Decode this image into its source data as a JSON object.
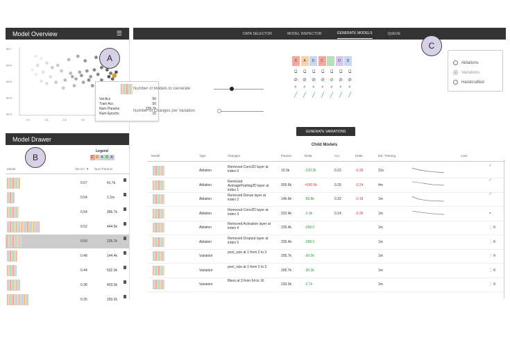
{
  "overview": {
    "title": "Model Overview",
    "menu_icon": "hamburger-icon"
  },
  "drawer": {
    "title": "Model Drawer",
    "col_model": "Model",
    "col_valacc": "Val Acc ▼",
    "col_params": "Num Params"
  },
  "legend": {
    "title": "Legend",
    "letters": [
      "C",
      "D",
      "A",
      "D",
      "A"
    ]
  },
  "callouts": {
    "a": "A",
    "b": "B",
    "c": "C"
  },
  "scatter": {
    "y_ticks": [
      "5e+7",
      "5e+6",
      "5e+5",
      "5e+4",
      "5e+3"
    ],
    "x_ticks": [
      "0.1",
      "0.2",
      "0.3",
      "0.4",
      "0.5",
      "0.6"
    ],
    "points": [
      {
        "x": 0.14,
        "y": 2.6,
        "c": "#eee"
      },
      {
        "x": 0.17,
        "y": 2.5,
        "c": "#eee"
      },
      {
        "x": 0.15,
        "y": 2.2,
        "c": "#ddd"
      },
      {
        "x": 0.2,
        "y": 2.3,
        "c": "#ddd"
      },
      {
        "x": 0.23,
        "y": 2.1,
        "c": "#ccc"
      },
      {
        "x": 0.18,
        "y": 1.9,
        "c": "#e5e5e5"
      },
      {
        "x": 0.22,
        "y": 1.7,
        "c": "#ddd"
      },
      {
        "x": 0.14,
        "y": 1.8,
        "c": "#eee"
      },
      {
        "x": 0.28,
        "y": 1.95,
        "c": "#ccc"
      },
      {
        "x": 0.33,
        "y": 1.85,
        "c": "#bbb"
      },
      {
        "x": 0.38,
        "y": 1.9,
        "c": "#aaa"
      },
      {
        "x": 0.42,
        "y": 1.95,
        "c": "#999"
      },
      {
        "x": 0.46,
        "y": 2.0,
        "c": "#888"
      },
      {
        "x": 0.5,
        "y": 2.1,
        "c": "#777"
      },
      {
        "x": 0.53,
        "y": 2.0,
        "c": "#666"
      },
      {
        "x": 0.55,
        "y": 1.85,
        "c": "#777"
      },
      {
        "x": 0.48,
        "y": 1.8,
        "c": "#888"
      },
      {
        "x": 0.44,
        "y": 1.7,
        "c": "#999"
      },
      {
        "x": 0.36,
        "y": 1.6,
        "c": "#aaa"
      },
      {
        "x": 0.3,
        "y": 1.55,
        "c": "#bbb"
      },
      {
        "x": 0.25,
        "y": 1.45,
        "c": "#ccc"
      },
      {
        "x": 0.2,
        "y": 1.4,
        "c": "#ddd"
      },
      {
        "x": 0.17,
        "y": 1.5,
        "c": "#e5e5e5"
      },
      {
        "x": 0.4,
        "y": 1.45,
        "c": "#aaa"
      },
      {
        "x": 0.45,
        "y": 1.3,
        "c": "#999"
      },
      {
        "x": 0.35,
        "y": 1.3,
        "c": "#bbb"
      },
      {
        "x": 0.29,
        "y": 1.2,
        "c": "#ccc"
      },
      {
        "x": 0.5,
        "y": 1.55,
        "c": "#888"
      },
      {
        "x": 0.56,
        "y": 1.6,
        "c": "#666"
      },
      {
        "x": 0.54,
        "y": 1.7,
        "c": "#555"
      },
      {
        "x": 0.58,
        "y": 1.9,
        "c": "#555"
      },
      {
        "x": 0.57,
        "y": 1.75,
        "c": "#d4a017"
      },
      {
        "x": 0.52,
        "y": 2.3,
        "c": "#777"
      },
      {
        "x": 0.47,
        "y": 2.55,
        "c": "#888"
      },
      {
        "x": 0.41,
        "y": 2.4,
        "c": "#999"
      },
      {
        "x": 0.37,
        "y": 2.6,
        "c": "#aaa"
      },
      {
        "x": 0.32,
        "y": 2.45,
        "c": "#bbb"
      },
      {
        "x": 0.26,
        "y": 2.2,
        "c": "#ccc"
      },
      {
        "x": 0.12,
        "y": 2.0,
        "c": "#eee"
      },
      {
        "x": 0.39,
        "y": 1.75,
        "c": "#999"
      },
      {
        "x": 0.43,
        "y": 1.55,
        "c": "#888"
      },
      {
        "x": 0.34,
        "y": 1.7,
        "c": "#aaa"
      }
    ]
  },
  "tooltip": {
    "rows": [
      {
        "label": "Val Acc",
        "value": "50"
      },
      {
        "label": "Train Acc",
        "value": "50"
      },
      {
        "label": "Num Params",
        "value": "235.7k"
      },
      {
        "label": "Num Epochs",
        "value": "15"
      }
    ]
  },
  "drawer_rows": [
    {
      "val_acc": "0.57",
      "params": "41.7k",
      "width": 14,
      "selected": false
    },
    {
      "val_acc": "0.54",
      "params": "1.2m",
      "width": 8,
      "selected": false
    },
    {
      "val_acc": "0.54",
      "params": "366.7k",
      "width": 12,
      "selected": false
    },
    {
      "val_acc": "0.52",
      "params": "444.5k",
      "width": 34,
      "selected": false
    },
    {
      "val_acc": "0.50",
      "params": "235.7k",
      "width": 16,
      "selected": true
    },
    {
      "val_acc": "0.48",
      "params": "144.4k",
      "width": 11,
      "selected": false
    },
    {
      "val_acc": "0.44",
      "params": "532.0k",
      "width": 10,
      "selected": false
    },
    {
      "val_acc": "0.38",
      "params": "403.0k",
      "width": 14,
      "selected": false
    },
    {
      "val_acc": "0.35",
      "params": "293.2k",
      "width": 22,
      "selected": false
    }
  ],
  "nav": {
    "tabs": [
      "DATA SELECTOR",
      "MODEL INSPECTOR",
      "GENERATE MODELS",
      "QUEUE"
    ],
    "active": 2
  },
  "generate": {
    "num_models_label": "Number of Models to Generate",
    "num_changes_label": "Number of Changes per Variation",
    "button": "GENERATE VARIATIONS",
    "ops": [
      {
        "letter": "C",
        "color": "#f4a8a0"
      },
      {
        "letter": "A",
        "color": "#f9d3a8"
      },
      {
        "letter": "D",
        "color": "#c8d8f0"
      },
      {
        "letter": "C",
        "color": "#f4a8a0"
      },
      {
        "letter": "",
        "color": "#b8e0b8"
      },
      {
        "letter": "D",
        "color": "#d8c8f0"
      },
      {
        "letter": "D",
        "color": "#c8d8f0"
      }
    ],
    "radios": [
      {
        "label": "Ablations",
        "on": false
      },
      {
        "label": "Variations",
        "on": true
      },
      {
        "label": "Handcrafted",
        "on": false
      }
    ]
  },
  "child_models": {
    "title": "Child Models",
    "headers": [
      "Model",
      "Type",
      "Changes",
      "Params",
      "Delta",
      "Acc.",
      "Delta",
      "Est. Training",
      "Loss"
    ],
    "rows": [
      {
        "type": "Ablation",
        "changes": "Removed Conv2D layer at index 0",
        "params": "15.5k",
        "delta_p": "-220.2k",
        "dp_sign": "pos",
        "acc": "0.22",
        "delta_a": "-0.28",
        "time": "31s",
        "loss": true
      },
      {
        "type": "Ablation",
        "changes": "Removed AveragePooling2D layer at index 1",
        "params": "926.6k",
        "delta_p": "+690.9k",
        "dp_sign": "neg",
        "acc": "0.26",
        "delta_a": "-0.24",
        "time": "4m",
        "loss": true
      },
      {
        "type": "Ablation",
        "changes": "Removed Dense layer at index 2",
        "params": "146.9k",
        "delta_p": "-88.8k",
        "dp_sign": "pos",
        "acc": "0.32",
        "delta_a": "-0.18",
        "time": "1m",
        "loss": true
      },
      {
        "type": "Ablation",
        "changes": "Removed Conv2D layer at index 3",
        "params": "232.4k",
        "delta_p": "-3.3k",
        "dp_sign": "pos",
        "acc": "0.14",
        "delta_a": "-0.36",
        "time": "1m",
        "loss": true
      },
      {
        "type": "Ablation",
        "changes": "Removed Activation layer at index 4",
        "params": "235.4k",
        "delta_p": "-268.0",
        "dp_sign": "pos",
        "acc": "",
        "delta_a": "",
        "time": "1m",
        "loss": false
      },
      {
        "type": "Ablation",
        "changes": "Removed Dropout layer at index 5",
        "params": "235.4k",
        "delta_p": "-288.0",
        "dp_sign": "pos",
        "acc": "",
        "delta_a": "",
        "time": "1m",
        "loss": false
      },
      {
        "type": "Variation",
        "changes": "pool_size at 1 from 2 to 3",
        "params": "205.7k",
        "delta_p": "-30.0k",
        "dp_sign": "pos",
        "acc": "",
        "delta_a": "",
        "time": "1m",
        "loss": false
      },
      {
        "type": "Variation",
        "changes": "pool_size at 1 from 2 to 3",
        "params": "205.7k",
        "delta_p": "-30.0k",
        "dp_sign": "pos",
        "acc": "",
        "delta_a": "",
        "time": "1m",
        "loss": false
      },
      {
        "type": "Variation",
        "changes": "filters at 3 from 64 to 16",
        "params": "233.0k",
        "delta_p": "-2.7k",
        "dp_sign": "pos",
        "acc": "",
        "delta_a": "",
        "time": "1m",
        "loss": false
      }
    ]
  },
  "colors": {
    "stripe_palette": [
      "#f4a8a0",
      "#f9d3a8",
      "#c8d8f0",
      "#b8e0b8",
      "#d8c8f0",
      "#f0e0a0"
    ]
  }
}
